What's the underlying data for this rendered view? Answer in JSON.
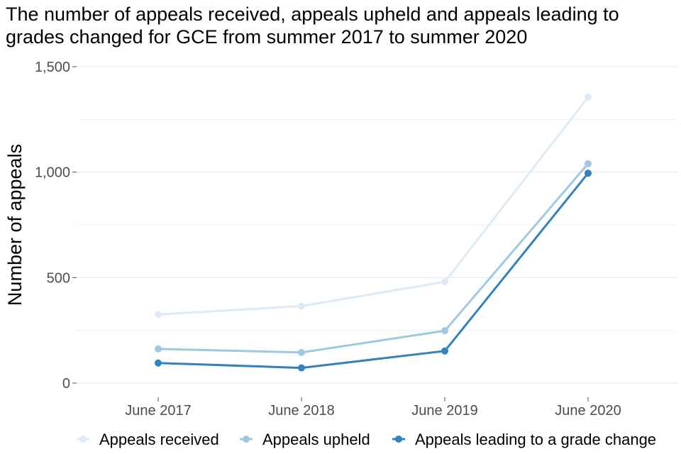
{
  "chart_data": {
    "type": "line",
    "title": "The number of appeals received, appeals upheld and appeals leading to grades changed for GCE from summer 2017 to summer 2020",
    "xlabel": "",
    "ylabel": "Number of appeals",
    "categories": [
      "June 2017",
      "June 2018",
      "June 2019",
      "June 2020"
    ],
    "ylim": [
      0,
      1500
    ],
    "yticks": [
      0,
      500,
      1000,
      1500
    ],
    "ytick_labels": [
      "0",
      "500",
      "1,000",
      "1,500"
    ],
    "grid": true,
    "legend_position": "bottom",
    "series": [
      {
        "name": "Appeals received",
        "color": "#deebf7",
        "values": [
          325,
          365,
          480,
          1355
        ]
      },
      {
        "name": "Appeals upheld",
        "color": "#9ecae1",
        "values": [
          162,
          145,
          248,
          1040
        ]
      },
      {
        "name": "Appeals leading to a grade change",
        "color": "#3182bd",
        "values": [
          95,
          72,
          152,
          995
        ]
      }
    ]
  }
}
